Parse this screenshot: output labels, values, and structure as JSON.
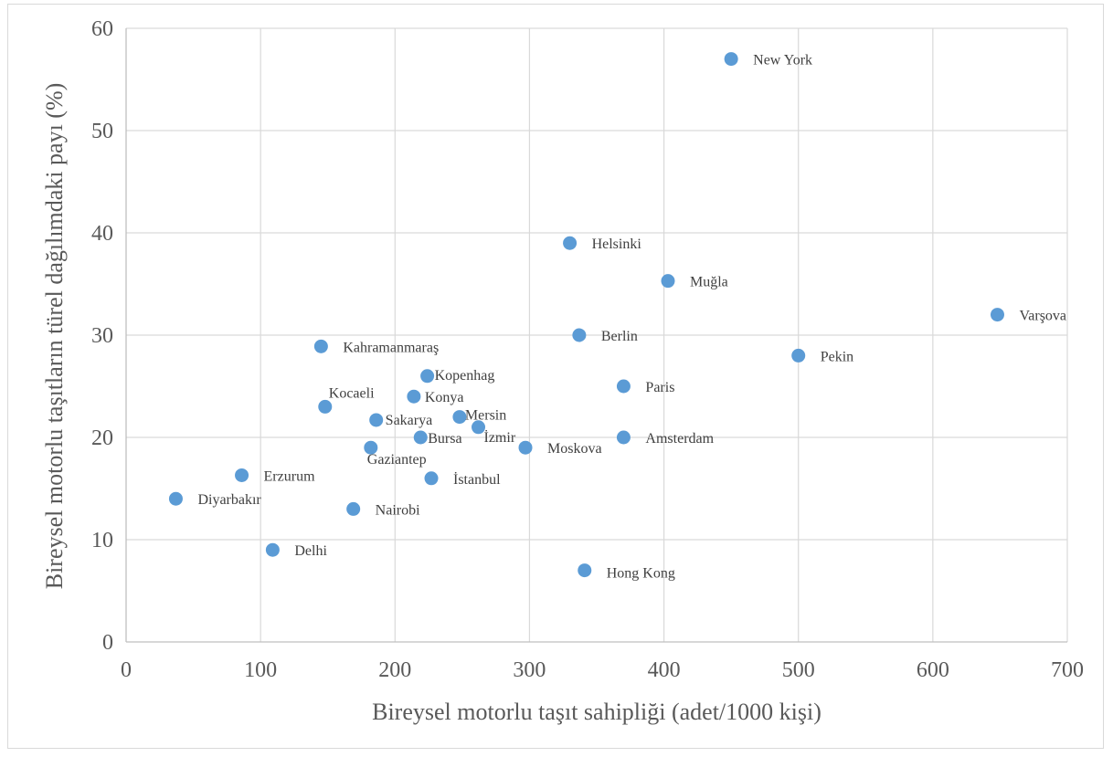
{
  "chart_data": {
    "type": "scatter",
    "title": "",
    "xlabel": "Bireysel motorlu taşıt sahipliği (adet/1000 kişi)",
    "ylabel": "Bireysel motorlu taşıtların türel dağılımdaki payı (%)",
    "xlim": [
      0,
      700
    ],
    "ylim": [
      0,
      60
    ],
    "xticks": [
      0,
      100,
      200,
      300,
      400,
      500,
      600,
      700
    ],
    "yticks": [
      0,
      10,
      20,
      30,
      40,
      50,
      60
    ],
    "grid": true,
    "legend": "none",
    "marker_color": "#5b9bd5",
    "points": [
      {
        "label": "New York",
        "x": 450,
        "y": 57
      },
      {
        "label": "Helsinki",
        "x": 330,
        "y": 39
      },
      {
        "label": "Muğla",
        "x": 403,
        "y": 35.3
      },
      {
        "label": "Varşova",
        "x": 648,
        "y": 32
      },
      {
        "label": "Berlin",
        "x": 337,
        "y": 30
      },
      {
        "label": "Kahramanmaraş",
        "x": 145,
        "y": 28.9
      },
      {
        "label": "Pekin",
        "x": 500,
        "y": 28
      },
      {
        "label": "Kopenhag",
        "x": 224,
        "y": 26
      },
      {
        "label": "Paris",
        "x": 370,
        "y": 25
      },
      {
        "label": "Konya",
        "x": 214,
        "y": 24
      },
      {
        "label": "Kocaeli",
        "x": 148,
        "y": 23
      },
      {
        "label": "Mersin",
        "x": 248,
        "y": 22
      },
      {
        "label": "Sakarya",
        "x": 186,
        "y": 21.7
      },
      {
        "label": "İzmir",
        "x": 262,
        "y": 21
      },
      {
        "label": "Bursa",
        "x": 219,
        "y": 20
      },
      {
        "label": "Amsterdam",
        "x": 370,
        "y": 20
      },
      {
        "label": "Gaziantep",
        "x": 182,
        "y": 19
      },
      {
        "label": "Moskova",
        "x": 297,
        "y": 19
      },
      {
        "label": "Erzurum",
        "x": 86,
        "y": 16.3
      },
      {
        "label": "İstanbul",
        "x": 227,
        "y": 16
      },
      {
        "label": "Diyarbakır",
        "x": 37,
        "y": 14
      },
      {
        "label": "Nairobi",
        "x": 169,
        "y": 13
      },
      {
        "label": "Delhi",
        "x": 109,
        "y": 9
      },
      {
        "label": "Hong Kong",
        "x": 341,
        "y": 7
      }
    ]
  }
}
